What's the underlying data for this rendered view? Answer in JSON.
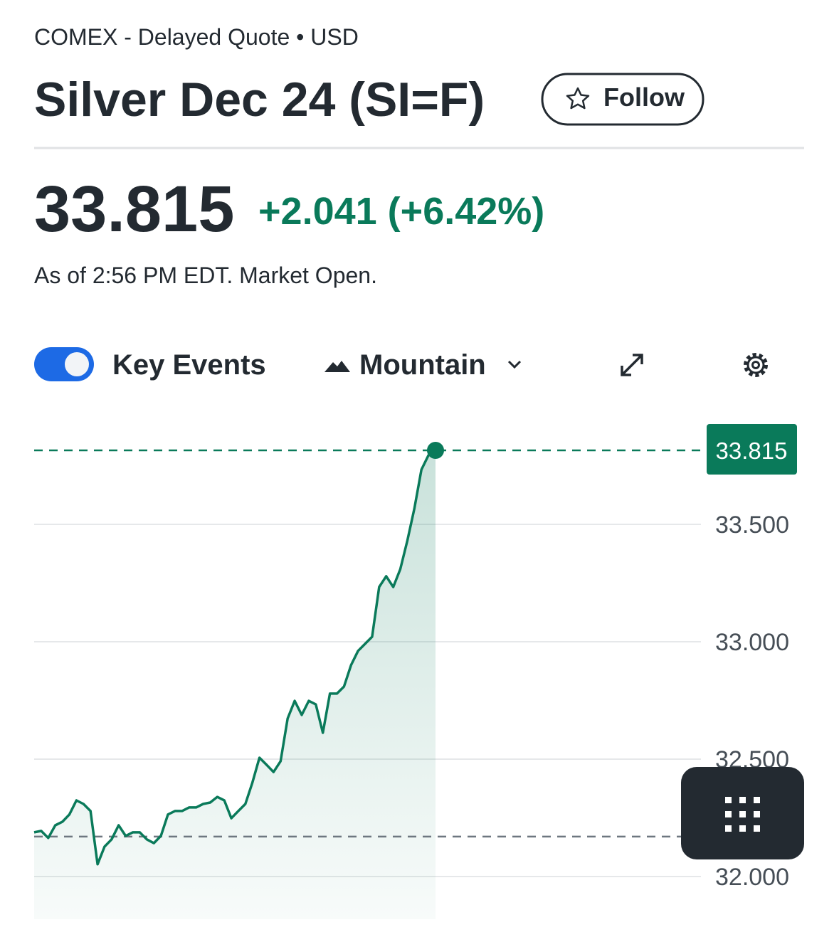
{
  "header": {
    "source": "COMEX - Delayed Quote • USD",
    "title": "Silver Dec 24 (SI=F)",
    "follow": "Follow",
    "change": "+2.041 (+6.42%)",
    "as_of": "As of 2:56 PM EDT. Market Open."
  },
  "controls": {
    "key_events": "Key Events",
    "chart_type": "Mountain"
  },
  "chart_data": {
    "type": "line",
    "color": "#0a7a5a",
    "values": [
      32.188,
      32.194,
      32.164,
      32.218,
      32.233,
      32.264,
      32.324,
      32.309,
      32.279,
      32.052,
      32.127,
      32.158,
      32.218,
      32.173,
      32.188,
      32.188,
      32.158,
      32.142,
      32.173,
      32.264,
      32.279,
      32.279,
      32.294,
      32.294,
      32.309,
      32.315,
      32.339,
      32.324,
      32.248,
      32.279,
      32.309,
      32.4,
      32.506,
      32.476,
      32.445,
      32.491,
      32.673,
      32.748,
      32.688,
      32.748,
      32.733,
      32.612,
      32.779,
      32.779,
      32.809,
      32.9,
      32.961,
      32.991,
      33.021,
      33.233,
      33.279,
      33.233,
      33.309,
      33.43,
      33.567,
      33.733,
      33.794,
      33.815
    ],
    "last_price": 33.815,
    "reference_line": 32.17,
    "ylim": [
      31.818,
      33.915
    ],
    "yticks": [
      {
        "value": 32,
        "label": "32.000"
      },
      {
        "value": 32.5,
        "label": "32.500"
      },
      {
        "value": 33,
        "label": "33.000"
      },
      {
        "value": 33.5,
        "label": "33.500"
      }
    ],
    "grid": true
  }
}
